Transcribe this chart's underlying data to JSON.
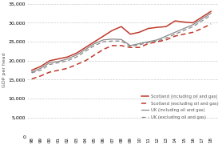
{
  "years": [
    1998,
    1999,
    2000,
    2001,
    2002,
    2003,
    2004,
    2005,
    2006,
    2007,
    2008,
    2009,
    2010,
    2011,
    2012,
    2013,
    2014,
    2015,
    2016,
    2017,
    2018
  ],
  "scotland_incl": [
    17500,
    18500,
    20000,
    20500,
    21000,
    22000,
    23500,
    25000,
    26500,
    28000,
    29000,
    27000,
    27500,
    28500,
    28800,
    29000,
    30500,
    30200,
    30000,
    31500,
    33000
  ],
  "scotland_excl": [
    15200,
    16000,
    17000,
    17500,
    18000,
    19000,
    20000,
    21500,
    23000,
    24000,
    24000,
    23500,
    23500,
    24500,
    25000,
    25500,
    26500,
    27000,
    27500,
    28500,
    29700
  ],
  "uk_incl": [
    17000,
    18000,
    19500,
    19800,
    20500,
    21500,
    23000,
    24500,
    25500,
    25700,
    25600,
    24000,
    24500,
    25000,
    25500,
    26500,
    27500,
    28500,
    29500,
    31000,
    32500
  ],
  "uk_excl": [
    16800,
    17500,
    19000,
    19500,
    20000,
    21000,
    22500,
    24000,
    25000,
    25200,
    25200,
    23800,
    24200,
    24800,
    25200,
    26000,
    27000,
    28000,
    29000,
    30500,
    32000
  ],
  "ylim": [
    0,
    35000
  ],
  "yticks": [
    0,
    5000,
    10000,
    15000,
    20000,
    25000,
    30000,
    35000
  ],
  "ylabel": "GDP per head",
  "legend_labels": [
    "Scotland (including oil and gas)",
    "Scotland (excluding oil and gas)",
    "UK (including oil and gas)",
    "UK (excluding oil and gas)"
  ],
  "color_red": "#c0392b",
  "color_gray": "#888888",
  "background": "#ffffff",
  "grid_color": "#cccccc"
}
